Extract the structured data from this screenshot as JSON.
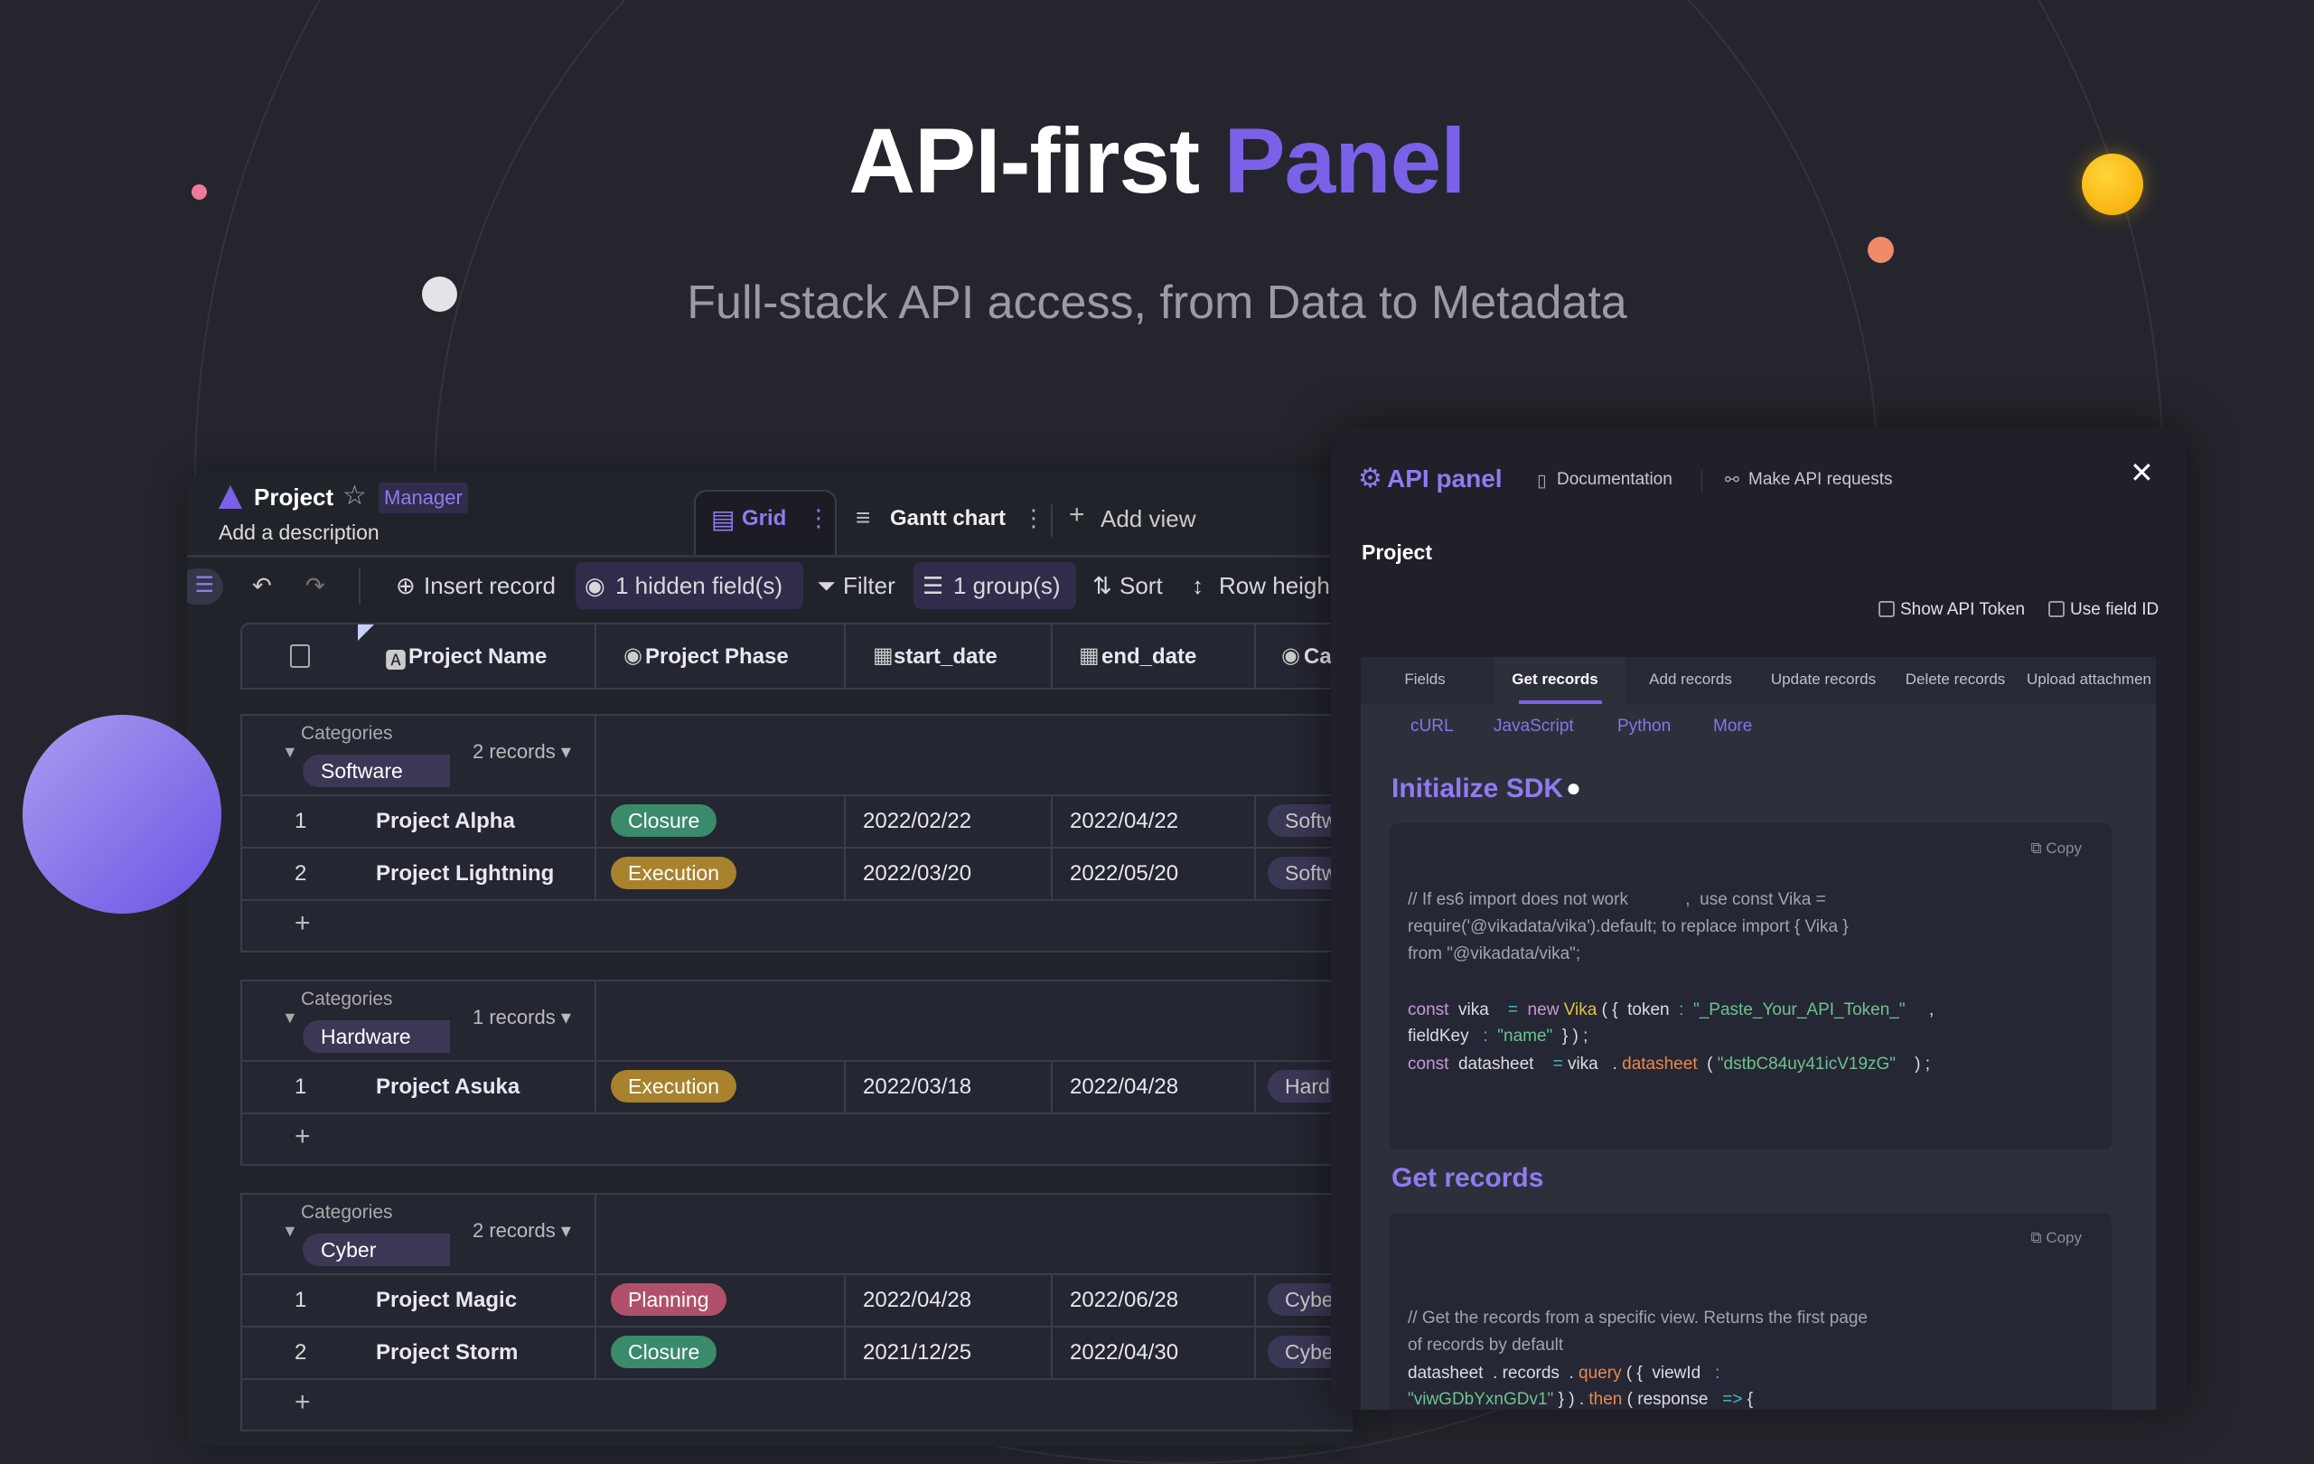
{
  "hero": {
    "title_main": "API-first ",
    "title_accent": "Panel",
    "subtitle": "Full-stack API access, from Data to Metadata"
  },
  "colors": {
    "accent": "#7b61e8",
    "closure": "#3a8a6c",
    "execution": "#a8822c",
    "planning": "#b0506a"
  },
  "app": {
    "title": "Project",
    "badge": "Manager",
    "description": "Add a description",
    "views": [
      {
        "label": "Grid",
        "icon": "grid-icon",
        "active": true
      },
      {
        "label": "Gantt chart",
        "icon": "gantt-icon"
      }
    ],
    "add_view": "Add view",
    "toolbar": {
      "insert": "Insert record",
      "hidden": "1 hidden field(s)",
      "filter": "Filter",
      "group": "1 group(s)",
      "sort": "Sort",
      "row_height": "Row heigh"
    },
    "columns": [
      "Project Name",
      "Project Phase",
      "start_date",
      "end_date",
      "Ca"
    ],
    "group_label": "Categories",
    "groups": [
      {
        "category": "Software Dev",
        "count": "2 records",
        "rows": [
          {
            "n": "1",
            "name": "Project Alpha",
            "phase": "Closure",
            "start": "2022/02/22",
            "end": "2022/04/22",
            "cat": "Softw"
          },
          {
            "n": "2",
            "name": "Project Lightning",
            "phase": "Execution",
            "start": "2022/03/20",
            "end": "2022/05/20",
            "cat": "Softw"
          }
        ]
      },
      {
        "category": "Hardware Up",
        "count": "1 records",
        "rows": [
          {
            "n": "1",
            "name": "Project Asuka",
            "phase": "Execution",
            "start": "2022/03/18",
            "end": "2022/04/28",
            "cat": "Hard"
          }
        ]
      },
      {
        "category": "Cyber Securit",
        "count": "2 records",
        "rows": [
          {
            "n": "1",
            "name": "Project Magic",
            "phase": "Planning",
            "start": "2022/04/28",
            "end": "2022/06/28",
            "cat": "Cybe"
          },
          {
            "n": "2",
            "name": "Project Storm",
            "phase": "Closure",
            "start": "2021/12/25",
            "end": "2022/04/30",
            "cat": "Cybe"
          }
        ]
      }
    ]
  },
  "panel": {
    "title": "API panel",
    "docs": "Documentation",
    "requests": "Make API requests",
    "datasheet": "Project",
    "show_token": "Show API Token",
    "use_field_id": "Use field ID",
    "tabs": [
      "Fields",
      "Get records",
      "Add records",
      "Update records",
      "Delete records",
      "Upload attachmen"
    ],
    "active_tab": "Get records",
    "langs": [
      "cURL",
      "JavaScript",
      "Python",
      "More"
    ],
    "sdk_heading": "Initialize SDK",
    "records_heading": "Get records",
    "copy": "Copy",
    "code1": [
      [
        [
          "// If es6 import does not work            ,  use const Vika =",
          "cm"
        ]
      ],
      [
        [
          "require('@vikadata/vika').default; to replace import { Vika }",
          "cm"
        ]
      ],
      [
        [
          "from \"@vikadata/vika\";",
          "cm"
        ]
      ],
      [],
      [
        [
          "const",
          "kw"
        ],
        [
          "  vika    ",
          ""
        ],
        [
          "=",
          "op"
        ],
        [
          "  new ",
          "kw"
        ],
        [
          "Vika",
          "cls"
        ],
        [
          " ( {  token  ",
          ""
        ],
        [
          ":",
          "op"
        ],
        [
          "  \"_Paste_Your_API_Token_\"",
          "str"
        ],
        [
          "     ,",
          ""
        ]
      ],
      [
        [
          "fieldKey   ",
          ""
        ],
        [
          ":",
          "op"
        ],
        [
          "  \"name\"",
          "str"
        ],
        [
          "  } ) ;",
          ""
        ]
      ],
      [
        [
          "const",
          "kw"
        ],
        [
          "  datasheet    ",
          ""
        ],
        [
          "=",
          "op"
        ],
        [
          " vika   . ",
          ""
        ],
        [
          "datasheet",
          "fn"
        ],
        [
          "  ( ",
          ""
        ],
        [
          "\"dstbC84uy41icV19zG\"",
          "str"
        ],
        [
          "    ) ;",
          ""
        ]
      ]
    ],
    "code2": [
      [
        [
          "// Get the records from a specific view. Returns the first page",
          "cm"
        ]
      ],
      [
        [
          "of records by default",
          "cm"
        ]
      ],
      [
        [
          "datasheet  . records  . ",
          ""
        ],
        [
          "query",
          "fn"
        ],
        [
          " ( {  viewId   ",
          ""
        ],
        [
          ":",
          "op"
        ]
      ],
      [
        [
          "\"viwGDbYxnGDv1\"",
          "str"
        ],
        [
          " } ) . ",
          ""
        ],
        [
          "then",
          "fn"
        ],
        [
          " ( response   ",
          ""
        ],
        [
          "=>",
          "op"
        ],
        [
          " {",
          ""
        ]
      ]
    ]
  }
}
